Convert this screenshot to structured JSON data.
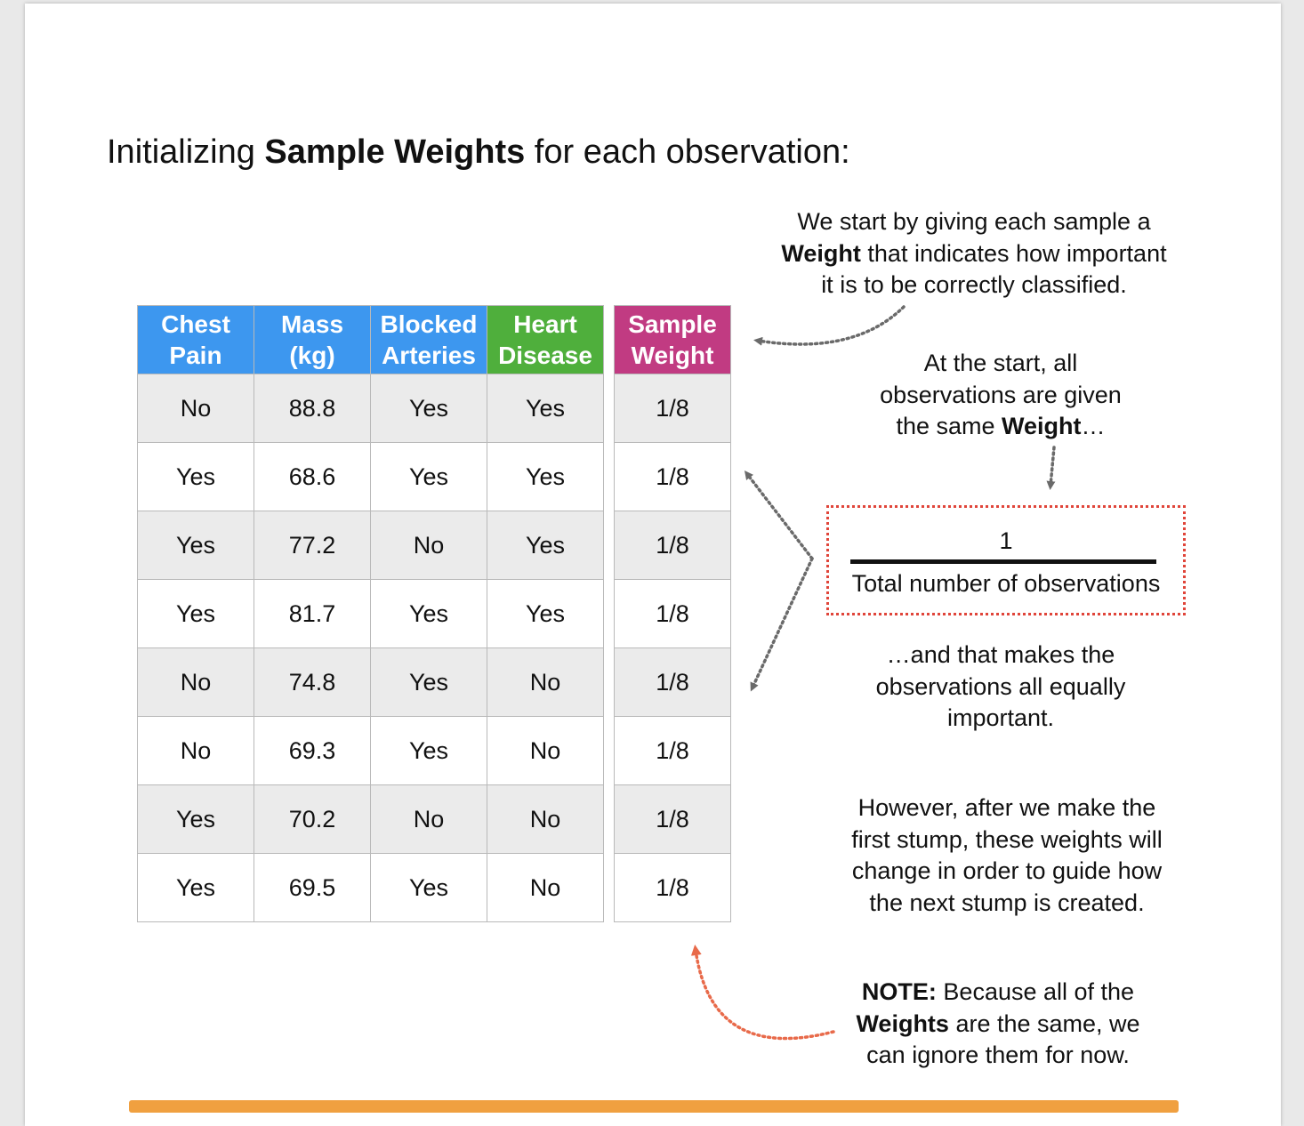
{
  "title": {
    "prefix": "Initializing ",
    "bold": "Sample Weights",
    "suffix": " for each observation:"
  },
  "table": {
    "headers": [
      {
        "line1": "Chest",
        "line2": "Pain"
      },
      {
        "line1": "Mass",
        "line2": "(kg)"
      },
      {
        "line1": "Blocked",
        "line2": "Arteries"
      },
      {
        "line1": "Heart",
        "line2": "Disease"
      }
    ],
    "rows": [
      [
        "No",
        "88.8",
        "Yes",
        "Yes"
      ],
      [
        "Yes",
        "68.6",
        "Yes",
        "Yes"
      ],
      [
        "Yes",
        "77.2",
        "No",
        "Yes"
      ],
      [
        "Yes",
        "81.7",
        "Yes",
        "Yes"
      ],
      [
        "No",
        "74.8",
        "Yes",
        "No"
      ],
      [
        "No",
        "69.3",
        "Yes",
        "No"
      ],
      [
        "Yes",
        "70.2",
        "No",
        "No"
      ],
      [
        "Yes",
        "69.5",
        "Yes",
        "No"
      ]
    ]
  },
  "weights": {
    "header": {
      "line1": "Sample",
      "line2": "Weight"
    },
    "values": [
      "1/8",
      "1/8",
      "1/8",
      "1/8",
      "1/8",
      "1/8",
      "1/8",
      "1/8"
    ]
  },
  "notes": {
    "intro": {
      "line1": "We start by giving each sample a",
      "line2_bold": "Weight",
      "line2_rest": " that indicates how important",
      "line3": "it is to be correctly classified."
    },
    "start": {
      "line1": "At the start, all",
      "line2": "observations are given",
      "line3_pre": "the same ",
      "line3_bold": "Weight",
      "line3_post": "…"
    },
    "formula": {
      "numerator": "1",
      "denominator": "Total number of observations"
    },
    "equal": {
      "line1": "…and that makes the",
      "line2": "observations all equally",
      "line3": "important."
    },
    "however": {
      "line1": "However, after we make the",
      "line2": "first stump, these weights will",
      "line3": "change in order to guide how",
      "line4": "the next stump is created."
    },
    "note": {
      "label": "NOTE:",
      "line1_rest": " Because all of the",
      "line2_bold": "Weights",
      "line2_rest": " are the same, we",
      "line3": "can ignore them for now."
    }
  },
  "colors": {
    "feature_header": "#3d97ef",
    "target_header": "#4faf3c",
    "weight_header": "#c13b82",
    "formula_border": "#e0453a",
    "arrow_gray": "#6a6a6a",
    "arrow_red": "#e86a4a",
    "brush_stroke": "#f0a040"
  }
}
